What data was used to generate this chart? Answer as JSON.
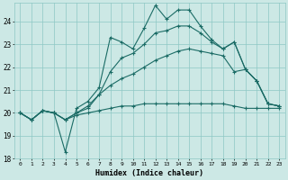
{
  "xlabel": "Humidex (Indice chaleur)",
  "bg_color": "#cce8e5",
  "grid_color": "#8ec8c4",
  "line_color": "#1a6b65",
  "xlim": [
    -0.5,
    23.5
  ],
  "ylim": [
    18.0,
    24.8
  ],
  "yticks": [
    18,
    19,
    20,
    21,
    22,
    23,
    24
  ],
  "xticks": [
    0,
    1,
    2,
    3,
    4,
    5,
    6,
    7,
    8,
    9,
    10,
    11,
    12,
    13,
    14,
    15,
    16,
    17,
    18,
    19,
    20,
    21,
    22,
    23
  ],
  "line1_y": [
    20.0,
    19.7,
    20.1,
    20.0,
    18.3,
    20.2,
    20.5,
    21.1,
    23.3,
    23.1,
    22.8,
    23.7,
    24.7,
    24.1,
    24.5,
    24.5,
    23.8,
    23.2,
    22.8,
    23.1,
    21.9,
    21.4,
    20.4,
    20.3
  ],
  "line2_y": [
    20.0,
    19.7,
    20.1,
    20.0,
    19.7,
    20.0,
    20.2,
    20.8,
    21.8,
    22.4,
    22.6,
    23.0,
    23.5,
    23.6,
    23.8,
    23.8,
    23.5,
    23.1,
    22.8,
    23.1,
    21.9,
    21.4,
    20.4,
    20.3
  ],
  "line3_y": [
    20.0,
    19.7,
    20.1,
    20.0,
    19.7,
    20.0,
    20.3,
    20.8,
    21.2,
    21.5,
    21.7,
    22.0,
    22.3,
    22.5,
    22.7,
    22.8,
    22.7,
    22.6,
    22.5,
    21.8,
    21.9,
    21.4,
    20.4,
    20.3
  ],
  "line4_y": [
    20.0,
    19.7,
    20.1,
    20.0,
    19.7,
    19.9,
    20.0,
    20.1,
    20.2,
    20.3,
    20.3,
    20.4,
    20.4,
    20.4,
    20.4,
    20.4,
    20.4,
    20.4,
    20.4,
    20.3,
    20.2,
    20.2,
    20.2,
    20.2
  ]
}
